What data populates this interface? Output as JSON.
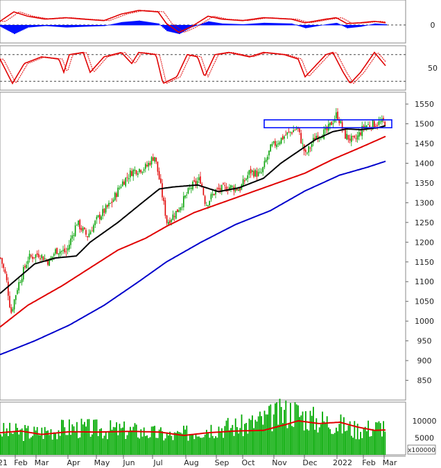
{
  "chart_data": [
    {
      "panel": "macd",
      "type": "line+histogram",
      "ylim": [
        -18,
        22
      ],
      "ticks": [
        0
      ],
      "colors": {
        "line": "#e00000",
        "signal": "#e00000",
        "hist": "#0010ff"
      },
      "anchors_x": [
        0,
        20,
        40,
        65,
        95,
        120,
        150,
        175,
        200,
        228,
        240,
        258,
        275,
        300,
        320,
        350,
        380,
        420,
        440,
        470,
        485,
        500,
        520,
        540,
        556
      ],
      "line": [
        5,
        18,
        12,
        8,
        10,
        8,
        6,
        15,
        20,
        18,
        2,
        -10,
        -3,
        12,
        8,
        6,
        10,
        8,
        3,
        8,
        10,
        2,
        3,
        5,
        3
      ],
      "hist": [
        -2,
        -12,
        -3,
        -1,
        -3,
        -2,
        -1,
        4,
        6,
        2,
        -8,
        -12,
        -3,
        5,
        2,
        1,
        3,
        2,
        -4,
        1,
        3,
        -4,
        -2,
        2,
        1
      ]
    },
    {
      "panel": "stochastic",
      "type": "line",
      "ylim": [
        0,
        100
      ],
      "ticks": [
        50
      ],
      "levels": [
        20,
        80
      ],
      "colors": {
        "k": "#e00000",
        "d": "#e00000"
      },
      "anchors_x": [
        0,
        18,
        35,
        60,
        85,
        92,
        100,
        120,
        130,
        150,
        175,
        190,
        200,
        225,
        235,
        255,
        270,
        285,
        295,
        310,
        330,
        360,
        380,
        410,
        430,
        440,
        470,
        480,
        495,
        505,
        520,
        540,
        556
      ],
      "k": [
        70,
        15,
        60,
        75,
        70,
        40,
        80,
        85,
        40,
        75,
        85,
        60,
        85,
        80,
        15,
        30,
        80,
        75,
        30,
        80,
        85,
        75,
        85,
        80,
        70,
        30,
        80,
        85,
        40,
        15,
        40,
        85,
        55
      ]
    },
    {
      "panel": "price",
      "type": "candlestick",
      "ylim": [
        800,
        1580
      ],
      "ticks": [
        850,
        900,
        950,
        1000,
        1050,
        1100,
        1150,
        1200,
        1250,
        1300,
        1350,
        1400,
        1450,
        1500,
        1550
      ],
      "months": [
        "21",
        "Feb",
        "Mar",
        "Apr",
        "May",
        "Jun",
        "Jul",
        "Aug",
        "Sep",
        "Oct",
        "Nov",
        "Dec",
        "2022",
        "Feb",
        "Mar"
      ],
      "close_anchors": [
        [
          0,
          1160
        ],
        [
          8,
          1110
        ],
        [
          15,
          1020
        ],
        [
          25,
          1090
        ],
        [
          40,
          1160
        ],
        [
          55,
          1170
        ],
        [
          70,
          1150
        ],
        [
          80,
          1180
        ],
        [
          95,
          1175
        ],
        [
          110,
          1250
        ],
        [
          125,
          1215
        ],
        [
          140,
          1260
        ],
        [
          160,
          1300
        ],
        [
          175,
          1350
        ],
        [
          190,
          1380
        ],
        [
          210,
          1390
        ],
        [
          222,
          1420
        ],
        [
          230,
          1350
        ],
        [
          240,
          1250
        ],
        [
          255,
          1280
        ],
        [
          275,
          1340
        ],
        [
          288,
          1360
        ],
        [
          296,
          1295
        ],
        [
          310,
          1330
        ],
        [
          330,
          1340
        ],
        [
          345,
          1335
        ],
        [
          360,
          1380
        ],
        [
          375,
          1370
        ],
        [
          390,
          1440
        ],
        [
          410,
          1470
        ],
        [
          428,
          1490
        ],
        [
          440,
          1420
        ],
        [
          455,
          1470
        ],
        [
          470,
          1480
        ],
        [
          485,
          1525
        ],
        [
          497,
          1470
        ],
        [
          510,
          1455
        ],
        [
          525,
          1495
        ],
        [
          540,
          1500
        ],
        [
          556,
          1505
        ]
      ],
      "series": [
        {
          "color": "#000000",
          "values": [
            [
              0,
              1070
            ],
            [
              20,
              1100
            ],
            [
              50,
              1145
            ],
            [
              80,
              1160
            ],
            [
              110,
              1165
            ],
            [
              130,
              1200
            ],
            [
              170,
              1250
            ],
            [
              205,
              1300
            ],
            [
              230,
              1335
            ],
            [
              250,
              1340
            ],
            [
              285,
              1345
            ],
            [
              315,
              1328
            ],
            [
              345,
              1338
            ],
            [
              380,
              1362
            ],
            [
              405,
              1400
            ],
            [
              430,
              1430
            ],
            [
              455,
              1460
            ],
            [
              480,
              1480
            ],
            [
              500,
              1487
            ],
            [
              520,
              1485
            ],
            [
              545,
              1490
            ],
            [
              556,
              1495
            ]
          ]
        },
        {
          "color": "#e00000",
          "values": [
            [
              0,
              985
            ],
            [
              40,
              1040
            ],
            [
              90,
              1090
            ],
            [
              130,
              1135
            ],
            [
              170,
              1180
            ],
            [
              210,
              1210
            ],
            [
              240,
              1240
            ],
            [
              280,
              1275
            ],
            [
              320,
              1300
            ],
            [
              360,
              1325
            ],
            [
              400,
              1350
            ],
            [
              440,
              1375
            ],
            [
              480,
              1410
            ],
            [
              520,
              1440
            ],
            [
              556,
              1468
            ]
          ]
        },
        {
          "color": "#0000cc",
          "values": [
            [
              0,
              915
            ],
            [
              50,
              950
            ],
            [
              100,
              990
            ],
            [
              150,
              1040
            ],
            [
              200,
              1100
            ],
            [
              240,
              1150
            ],
            [
              290,
              1200
            ],
            [
              340,
              1245
            ],
            [
              390,
              1280
            ],
            [
              440,
              1330
            ],
            [
              490,
              1370
            ],
            [
              530,
              1390
            ],
            [
              556,
              1405
            ]
          ]
        }
      ],
      "box": {
        "x": [
          381,
          565
        ],
        "y": [
          1490,
          1510
        ]
      }
    },
    {
      "panel": "volume",
      "type": "bar+line",
      "ylim": [
        0,
        15500
      ],
      "ticks": [
        5000,
        10000
      ],
      "unit_label": "x100000",
      "colors": {
        "bar": "#00aa00",
        "ma": "#e00000"
      },
      "ma": [
        [
          0,
          6500
        ],
        [
          30,
          7000
        ],
        [
          60,
          6000
        ],
        [
          100,
          6800
        ],
        [
          140,
          6700
        ],
        [
          190,
          6900
        ],
        [
          230,
          6700
        ],
        [
          265,
          5700
        ],
        [
          300,
          6500
        ],
        [
          340,
          7000
        ],
        [
          380,
          7200
        ],
        [
          410,
          8800
        ],
        [
          430,
          10000
        ],
        [
          460,
          9200
        ],
        [
          490,
          9600
        ],
        [
          515,
          8200
        ],
        [
          540,
          7200
        ],
        [
          556,
          7300
        ]
      ],
      "bar_anchors": [
        [
          0,
          7000
        ],
        [
          50,
          6500
        ],
        [
          100,
          8000
        ],
        [
          150,
          7500
        ],
        [
          200,
          7000
        ],
        [
          250,
          5500
        ],
        [
          300,
          8000
        ],
        [
          350,
          8500
        ],
        [
          390,
          11000
        ],
        [
          420,
          13000
        ],
        [
          450,
          10500
        ],
        [
          480,
          9500
        ],
        [
          510,
          7500
        ],
        [
          540,
          8000
        ],
        [
          556,
          9000
        ]
      ]
    }
  ]
}
